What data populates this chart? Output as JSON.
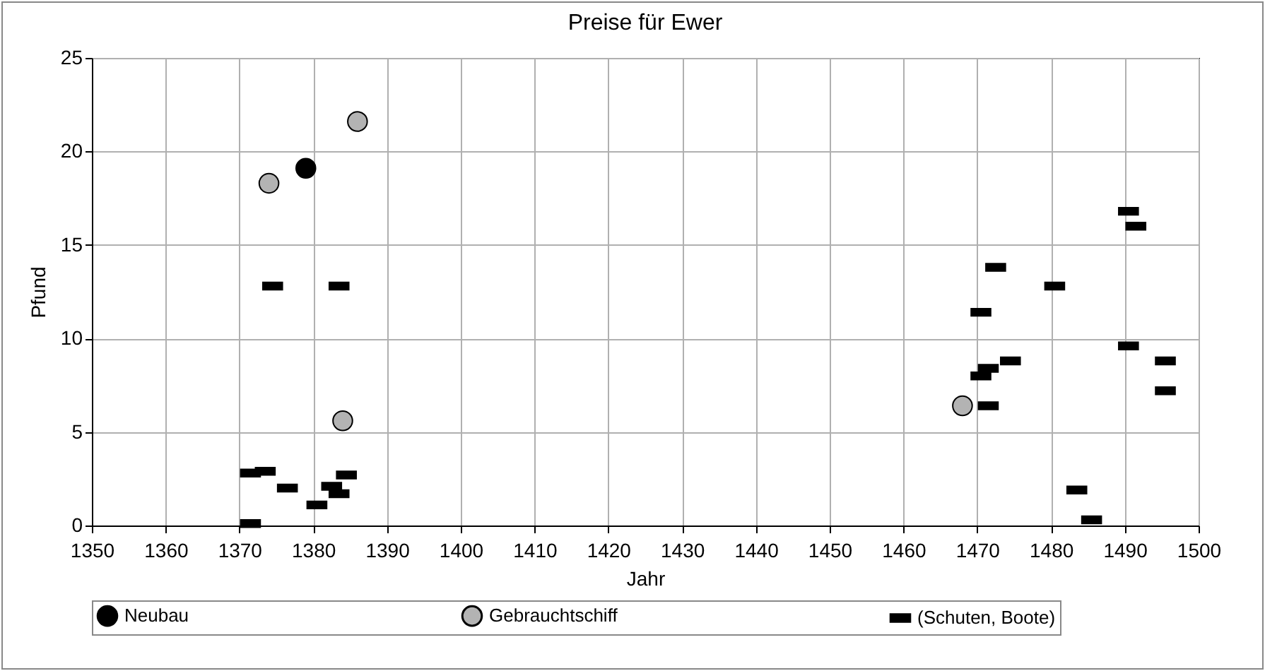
{
  "chart_data": {
    "type": "scatter",
    "title": "Preise für Ewer",
    "xlabel": "Jahr",
    "ylabel": "Pfund",
    "xlim": [
      1350,
      1500
    ],
    "xticks": [
      1350,
      1360,
      1370,
      1380,
      1390,
      1400,
      1410,
      1420,
      1430,
      1440,
      1450,
      1460,
      1470,
      1480,
      1490,
      1500
    ],
    "ylim": [
      0,
      25
    ],
    "yticks": [
      0,
      5,
      10,
      15,
      20,
      25
    ],
    "grid": true,
    "legend": "bottom",
    "series": [
      {
        "name": "Neubau",
        "color": "#000000",
        "marker": "circle",
        "x": [
          1379
        ],
        "values": [
          19.1
        ]
      },
      {
        "name": "Gebrauchtschiff",
        "color": "#b3b3b3",
        "marker": "circle",
        "x": [
          1374,
          1386,
          1384,
          1468
        ],
        "values": [
          18.3,
          21.6,
          5.6,
          6.4
        ]
      },
      {
        "name": "(Schuten, Boote)",
        "color": "#000000",
        "marker": "square",
        "x": [
          1374.5,
          1383.5,
          1371.5,
          1373.5,
          1376.5,
          1380.5,
          1382.5,
          1383.5,
          1384.5,
          1371.5,
          1490.5,
          1491.5,
          1472.5,
          1480.5,
          1470.5,
          1490.5,
          1474.5,
          1495.5,
          1471.5,
          1470.5,
          1495.5,
          1471.5,
          1483.5,
          1485.5
        ],
        "values": [
          12.8,
          12.8,
          2.8,
          2.9,
          2.0,
          1.1,
          2.1,
          1.7,
          2.7,
          0.1,
          16.8,
          16.0,
          13.8,
          12.8,
          11.4,
          9.6,
          8.8,
          8.8,
          8.4,
          8.0,
          7.2,
          6.4,
          1.9,
          0.3
        ]
      }
    ]
  }
}
